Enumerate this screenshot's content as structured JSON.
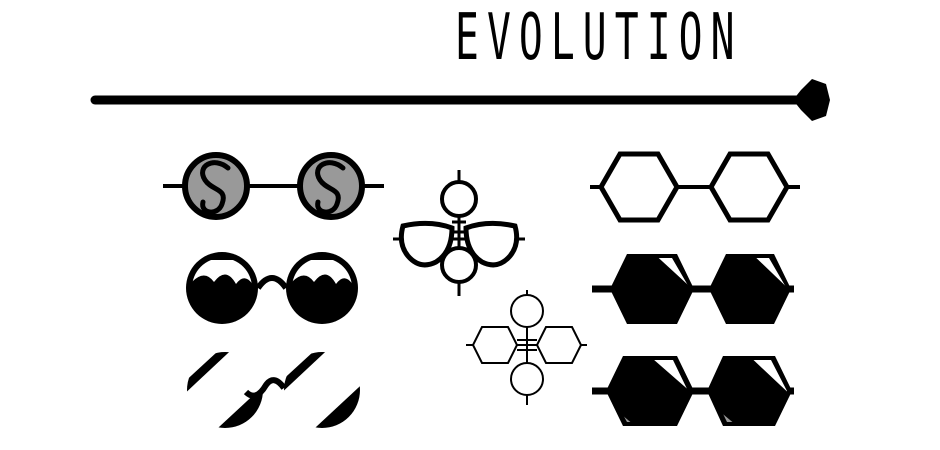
{
  "title": "EVOLUTION",
  "colors": {
    "ink": "#000000",
    "tint": "#999999",
    "paper": "#ffffff"
  },
  "icons": [
    "timeline-icon",
    "round-swirl-glasses-icon",
    "round-sunglasses-icon",
    "diagonal-sunglasses-icon",
    "aviator-evolution-icon",
    "hexagon-evolution-icon",
    "hexagon-outline-glasses-icon",
    "hexagon-shade-glasses-icon",
    "hexagon-tinted-glasses-icon"
  ]
}
